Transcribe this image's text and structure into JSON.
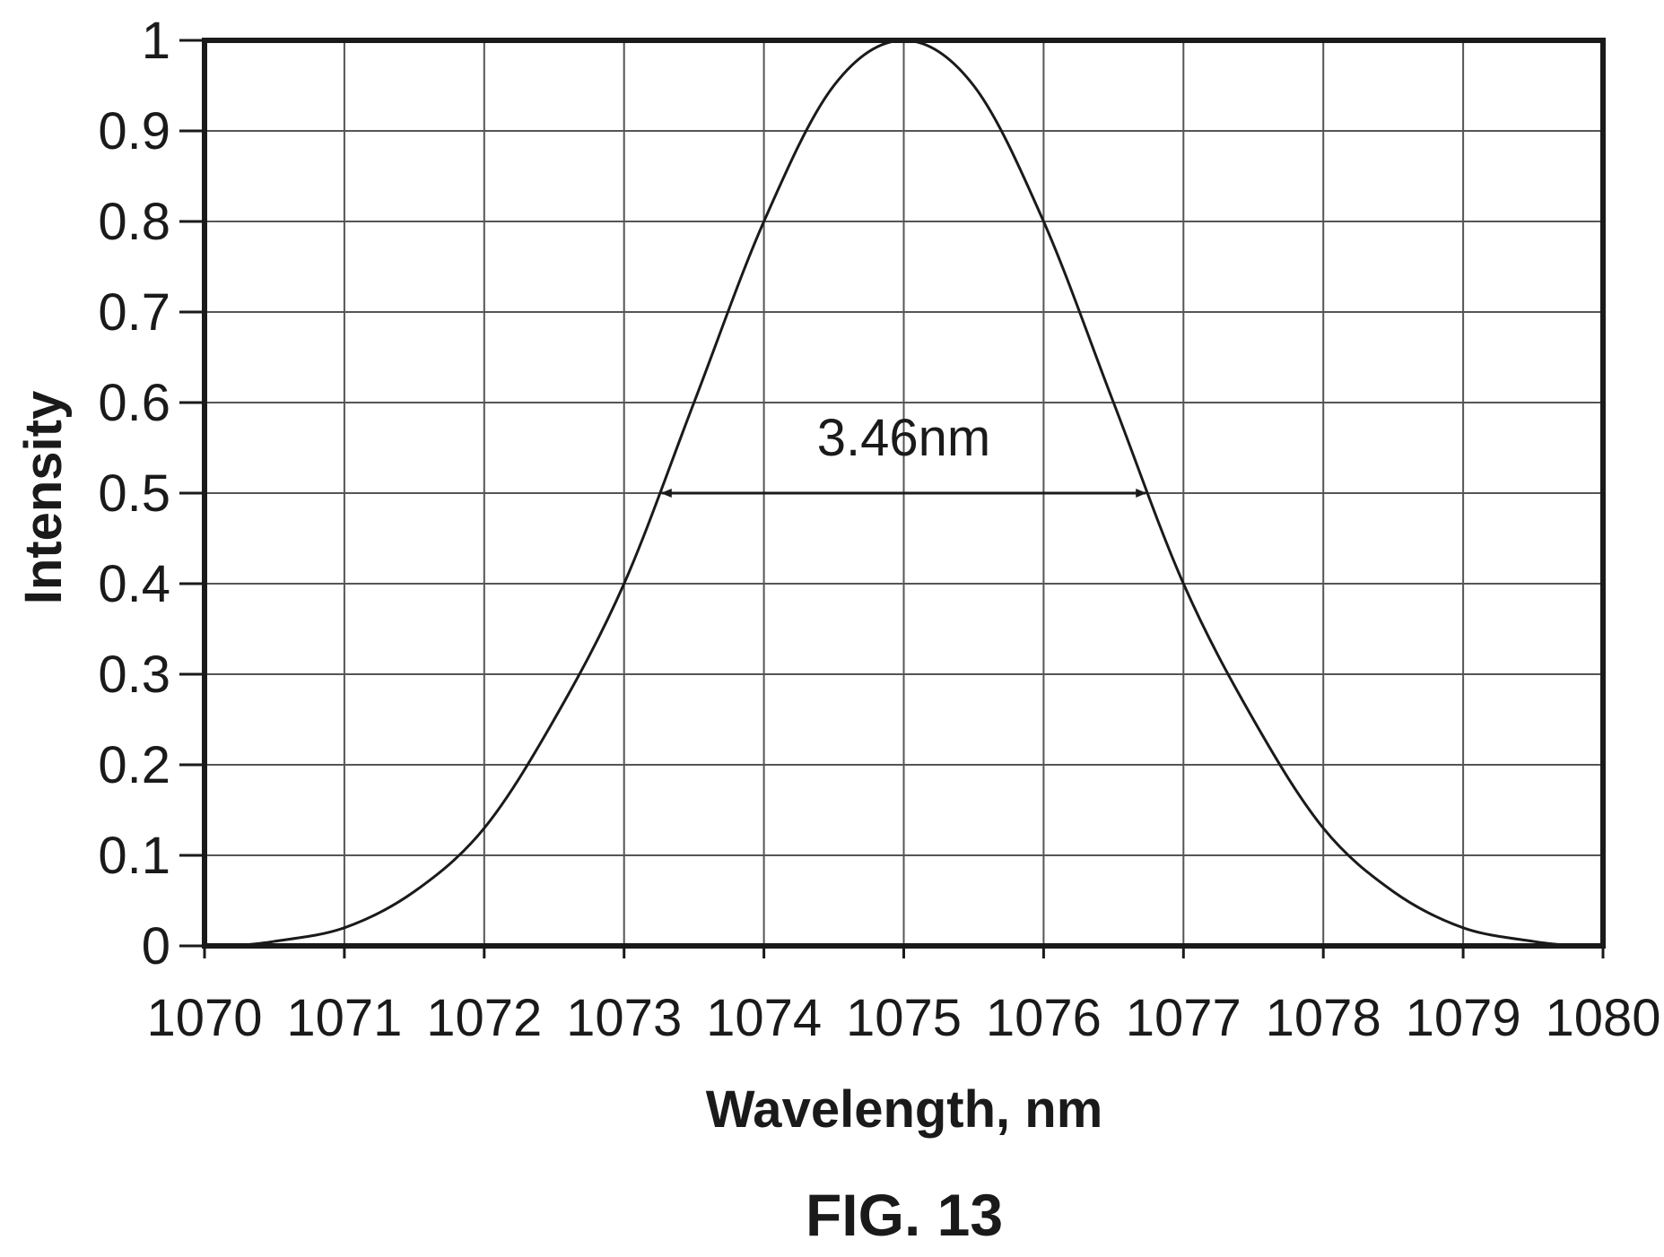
{
  "chart_data": {
    "type": "line",
    "xlabel": "Wavelength, nm",
    "ylabel": "Intensity",
    "xlim": [
      1070,
      1080
    ],
    "ylim": [
      0,
      1
    ],
    "x_ticks": [
      "1070",
      "1071",
      "1072",
      "1073",
      "1074",
      "1075",
      "1076",
      "1077",
      "1078",
      "1079",
      "1080"
    ],
    "y_ticks": [
      "0",
      "0.1",
      "0.2",
      "0.3",
      "0.4",
      "0.5",
      "0.6",
      "0.7",
      "0.8",
      "0.9",
      "1"
    ],
    "grid": true,
    "series": [
      {
        "x": [
          1070.2,
          1070.5,
          1071,
          1071.5,
          1072,
          1072.5,
          1073,
          1073.5,
          1074,
          1074.5,
          1075,
          1075.5,
          1076,
          1076.5,
          1077,
          1077.5,
          1078,
          1078.5,
          1079,
          1079.5,
          1079.8
        ],
        "y": [
          0,
          0.005,
          0.02,
          0.06,
          0.13,
          0.25,
          0.4,
          0.6,
          0.8,
          0.95,
          1,
          0.95,
          0.8,
          0.6,
          0.4,
          0.25,
          0.13,
          0.06,
          0.02,
          0.005,
          0
        ],
        "color": "#1a1a1a"
      }
    ],
    "annotations": [
      {
        "text": "3.46nm",
        "x": 1075,
        "y": 0.5,
        "arrow_from": 1073.27,
        "arrow_to": 1076.73
      }
    ]
  },
  "caption": "FIG. 13"
}
